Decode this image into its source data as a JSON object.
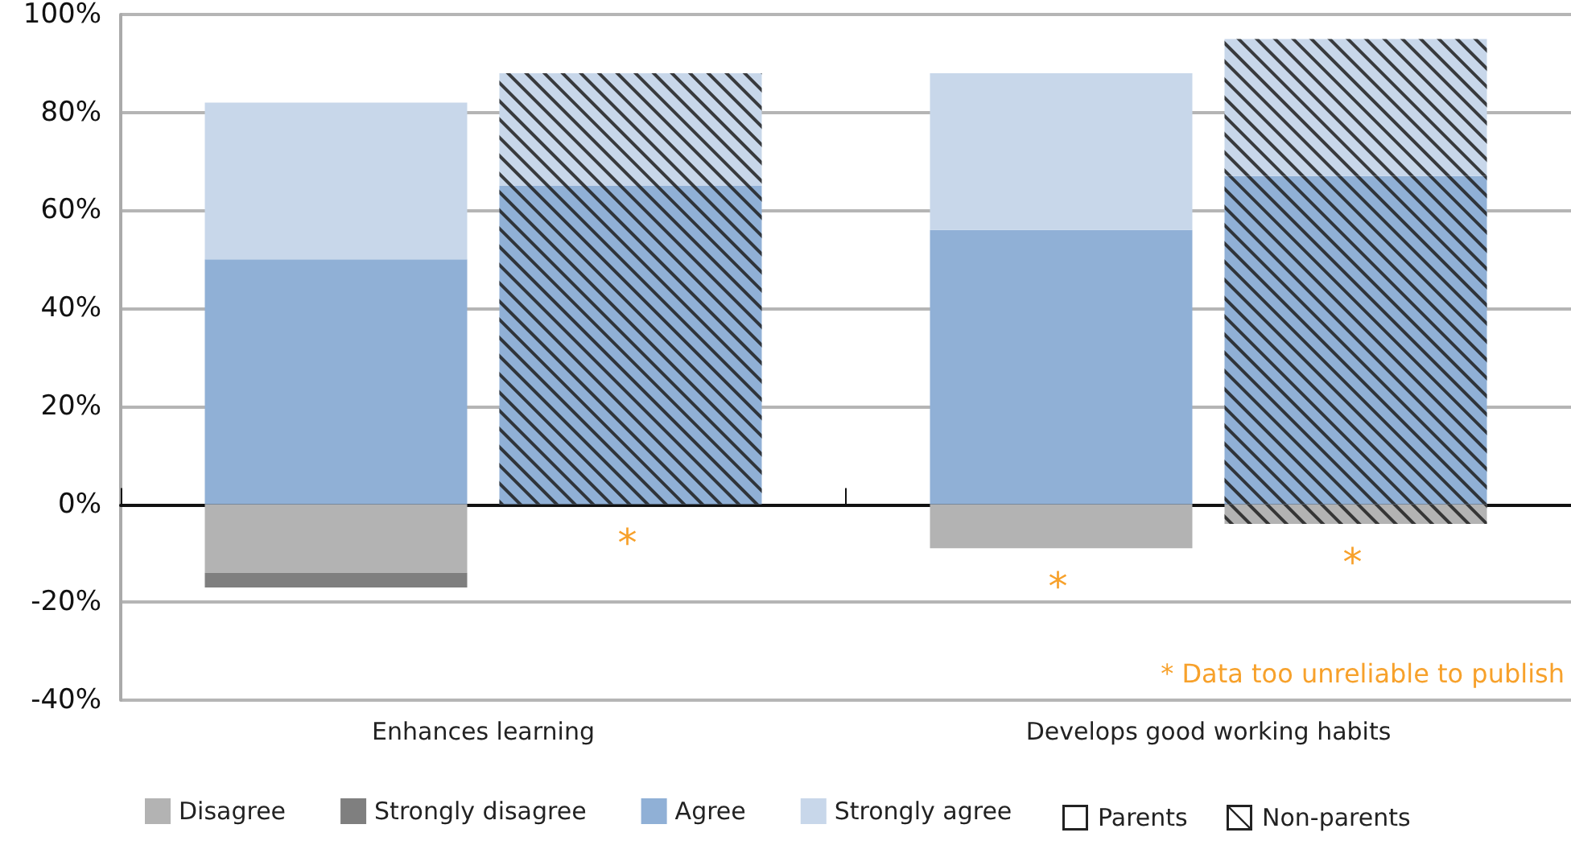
{
  "chart_data": {
    "type": "bar",
    "categories": [
      "Enhances learning",
      "Develops good working habits"
    ],
    "series": [
      {
        "name": "Disagree",
        "color": "#b3b3b3",
        "values": [
          -14,
          -9
        ],
        "base": [
          0,
          0
        ]
      },
      {
        "name": "Strongly disagree",
        "color": "#7f7f7f",
        "values": [
          -3,
          null
        ],
        "base": [
          -14,
          null
        ],
        "value_labels": [
          null,
          "*"
        ]
      },
      {
        "name": "Agree",
        "color": "#90b0d6",
        "values": [
          50,
          56
        ],
        "base": [
          0,
          0
        ]
      },
      {
        "name": "Strongly agree",
        "color": "#c8d7ea",
        "values": [
          32,
          32
        ],
        "base": [
          50,
          56
        ]
      },
      {
        "color": "#b3b3b3",
        "values": [
          null,
          -4
        ],
        "base": [
          null,
          0
        ],
        "value_labels": [
          "*",
          null
        ]
      },
      {
        "color": "#7f7f7f",
        "values": [
          null,
          null
        ],
        "base": [
          null,
          null
        ],
        "value_labels": [
          null,
          "*"
        ]
      },
      {
        "color": "#90b0d6",
        "values": [
          65,
          67
        ],
        "base": [
          0,
          0
        ]
      },
      {
        "color": "#c8d7ea",
        "values": [
          23,
          28
        ],
        "base": [
          65,
          67
        ]
      }
    ],
    "ylim": [
      -40,
      100
    ],
    "yticks": [
      {
        "value": -40,
        "label": "-40%"
      },
      {
        "value": -20,
        "label": "-20%"
      },
      {
        "value": 0,
        "label": "0%"
      },
      {
        "value": 20,
        "label": "20%"
      },
      {
        "value": 40,
        "label": "40%"
      },
      {
        "value": 60,
        "label": "60%"
      },
      {
        "value": 80,
        "label": "80%"
      },
      {
        "value": 100,
        "label": "100%"
      }
    ],
    "grid": "y",
    "legend": "bottom",
    "annotations": [
      "Parents",
      "Non-parents",
      "* Data too unreliable to publish"
    ]
  }
}
